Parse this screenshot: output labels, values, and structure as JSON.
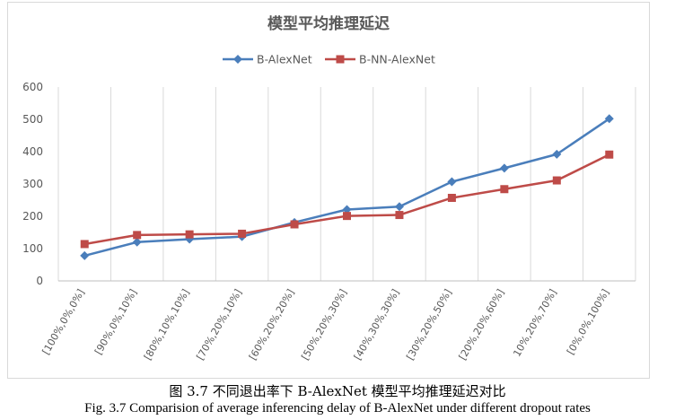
{
  "chart_data": {
    "type": "line",
    "title": "模型平均推理延迟",
    "categories": [
      "[100%,0%,0%]",
      "[90%,0%,10%]",
      "[80%,10%,10%]",
      "[70%,20%,10%]",
      "[60%,20%,20%]",
      "[50%,20%,30%]",
      "[40%,30%,30%]",
      "[30%,20%,50%]",
      "[20%,20%,60%]",
      "10%,20%,70%]",
      "[0%,0%,100%]"
    ],
    "series": [
      {
        "name": "B-AlexNet",
        "color": "#4a7ebb",
        "marker": "diamond",
        "values": [
          78,
          120,
          129,
          137,
          181,
          221,
          230,
          307,
          349,
          392,
          502
        ]
      },
      {
        "name": "B-NN-AlexNet",
        "color": "#be4b48",
        "marker": "square",
        "values": [
          114,
          142,
          144,
          146,
          175,
          201,
          204,
          257,
          284,
          311,
          391
        ]
      }
    ],
    "ylim": [
      0,
      600
    ],
    "yticks": [
      0,
      100,
      200,
      300,
      400,
      500,
      600
    ],
    "grid": "vertical-category",
    "legend": "top"
  },
  "captions": {
    "cn": "图 3.7  不同退出率下 B-AlexNet 模型平均推理延迟对比",
    "en": "Fig. 3.7 Comparision of average inferencing delay of B-AlexNet under different dropout rates"
  }
}
